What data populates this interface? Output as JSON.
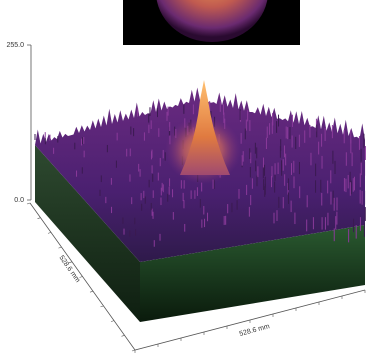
{
  "vertical_axis": {
    "max_label": "255.0",
    "min_label": "0.0"
  },
  "base": {
    "depth_label": "528.6 mm",
    "width_label": "528.6 mm"
  }
}
